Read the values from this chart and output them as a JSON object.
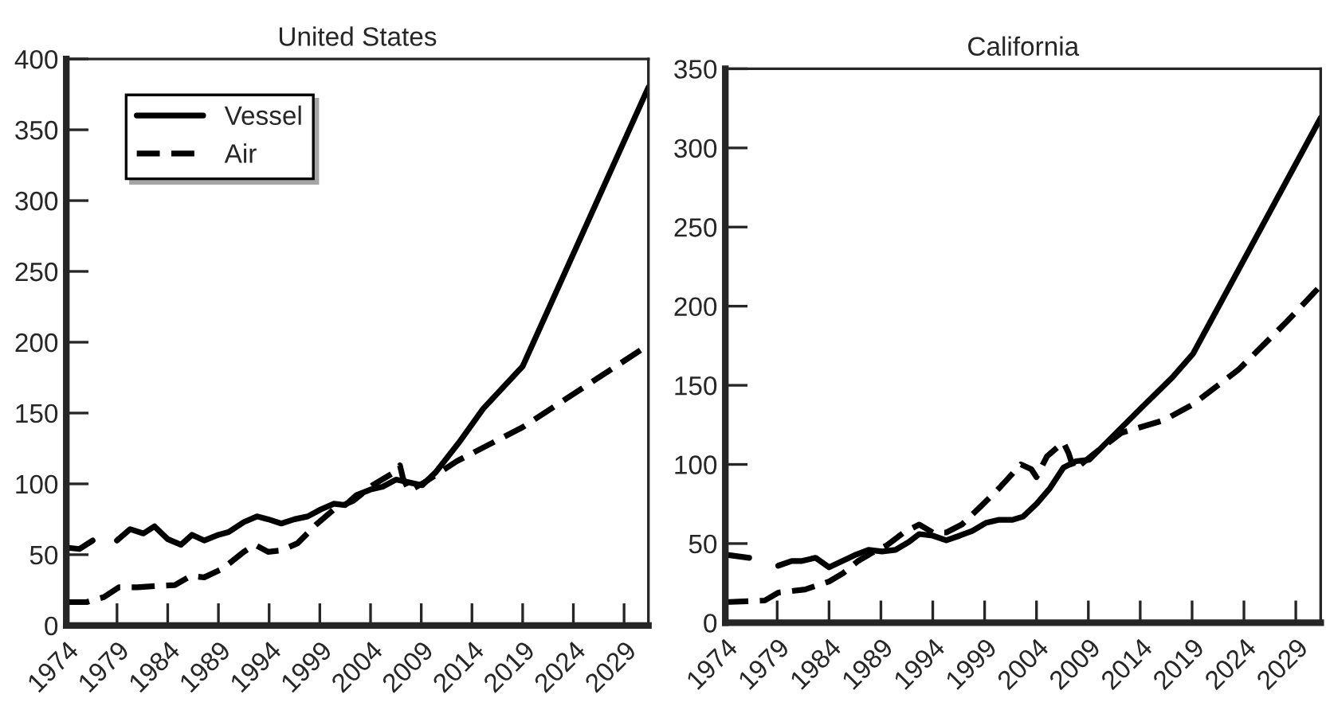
{
  "chart_data": [
    {
      "type": "line",
      "title": "United States",
      "xlim": [
        1974,
        2031.4
      ],
      "ylim": [
        0,
        400
      ],
      "xticks": [
        1974,
        1979,
        1984,
        1989,
        1994,
        1999,
        2004,
        2009,
        2014,
        2019,
        2024,
        2029
      ],
      "yticks": [
        0,
        50,
        100,
        150,
        200,
        250,
        300,
        350,
        400
      ],
      "grid": false,
      "legend": "top left",
      "series": [
        {
          "name": "Vessel",
          "color": "#000000",
          "line_style": "solid",
          "x": [
            1974,
            1975.3,
            1976.6,
            1977.8,
            1979,
            1980.3,
            1981.6,
            1982.7,
            1984,
            1985.3,
            1986.4,
            1987.6,
            1989,
            1990,
            1991.5,
            1992.8,
            1993.9,
            1995.2,
            1996.5,
            1997.8,
            1999.1,
            2000.4,
            2001.5,
            2002.6,
            2004,
            2005.2,
            2006.5,
            2007.8,
            2009.1,
            2010.4,
            2012.7,
            2015.1,
            2019,
            2031.4
          ],
          "values": [
            55,
            54,
            60,
            null,
            60,
            68,
            65,
            70,
            61,
            57,
            64,
            60,
            64,
            66,
            73,
            77,
            75,
            72,
            75,
            77,
            82,
            86,
            85,
            92,
            96,
            98,
            103,
            101,
            99,
            108,
            129,
            153,
            183,
            380
          ]
        },
        {
          "name": "Air",
          "color": "#000000",
          "line_style": "dashed",
          "x": [
            1974,
            1976,
            1977.7,
            1979.2,
            1981,
            1983,
            1984.7,
            1986.3,
            1987.6,
            1989.4,
            1991.5,
            1992.6,
            1993.9,
            1995.2,
            1996.8,
            1998.6,
            2000.4,
            2002.3,
            2004.2,
            2006.3,
            2006.9,
            2007.2,
            2007.8,
            2009.3,
            2012.5,
            2019,
            2031.4
          ],
          "values": [
            16.5,
            16.5,
            20,
            27,
            27,
            28,
            28.5,
            35,
            34,
            40,
            52,
            57,
            52,
            53,
            58,
            71,
            82,
            88,
            99,
            108,
            113,
            104,
            95,
            101,
            116,
            140,
            198
          ]
        }
      ]
    },
    {
      "type": "line",
      "title": "California",
      "xlim": [
        1974,
        2031.4
      ],
      "ylim": [
        0,
        350
      ],
      "xticks": [
        1974,
        1979,
        1984,
        1989,
        1994,
        1999,
        2004,
        2009,
        2014,
        2019,
        2024,
        2029
      ],
      "yticks": [
        0,
        50,
        100,
        150,
        200,
        250,
        300,
        350
      ],
      "grid": false,
      "series": [
        {
          "color": "#000000",
          "line_style": "solid",
          "x": [
            1974,
            1976.3,
            1977.7,
            1979.1,
            1980.4,
            1981.4,
            1982.7,
            1984,
            1985.3,
            1986.6,
            1987.8,
            1989.1,
            1990.4,
            1991.7,
            1992.7,
            1994,
            1995.3,
            1996.6,
            1997.8,
            1999.1,
            2000.4,
            2001.7,
            2002.7,
            2004,
            2005.3,
            2006.6,
            2007.8,
            2009.1,
            2011.7,
            2014.3,
            2017.1,
            2019.1,
            2031.4
          ],
          "values": [
            43,
            41,
            null,
            36,
            39,
            39,
            41,
            35,
            39,
            43,
            46,
            45,
            46,
            51,
            56,
            55,
            52,
            55,
            58,
            63,
            65,
            65,
            67,
            75,
            85,
            98,
            102,
            103,
            120,
            137,
            155,
            170,
            319
          ]
        },
        {
          "color": "#000000",
          "line_style": "dashed",
          "x": [
            1974,
            1977.8,
            1979.1,
            1981.7,
            1984,
            1985.3,
            1986.8,
            1988.1,
            1989.6,
            1991.2,
            1992.7,
            1994,
            1995.3,
            1996.8,
            1998.4,
            2000.4,
            2002.5,
            2003.5,
            2004,
            2005,
            2006.6,
            2007.1,
            2007.6,
            2008.1,
            2009.6,
            2012.2,
            2016.3,
            2019.1,
            2023.5,
            2028.1,
            2031.4
          ],
          "values": [
            13,
            14,
            19,
            21,
            26,
            31,
            39,
            44,
            49,
            57,
            62,
            57,
            57,
            62,
            72,
            85,
            100,
            97,
            92,
            105,
            114,
            107,
            97,
            99,
            107,
            120,
            128,
            138,
            160,
            190,
            213
          ]
        }
      ]
    }
  ]
}
